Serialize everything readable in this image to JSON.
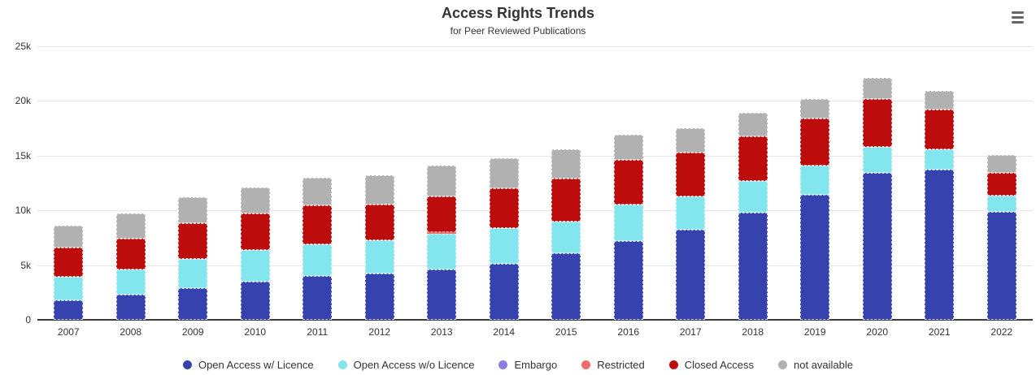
{
  "header": {
    "title": "Access Rights Trends",
    "subtitle": "for Peer Reviewed Publications",
    "menu_icon": "hamburger-menu-icon"
  },
  "chart_data": {
    "type": "bar",
    "stacked": true,
    "title": "Access Rights Trends",
    "subtitle": "for Peer Reviewed Publications",
    "categories": [
      "2007",
      "2008",
      "2009",
      "2010",
      "2011",
      "2012",
      "2013",
      "2014",
      "2015",
      "2016",
      "2017",
      "2018",
      "2019",
      "2020",
      "2021",
      "2022"
    ],
    "series": [
      {
        "name": "Open Access w/ Licence",
        "color": "#3642ad",
        "values": [
          1800,
          2300,
          2900,
          3500,
          4000,
          4200,
          4600,
          5100,
          6100,
          7200,
          8200,
          9800,
          11400,
          13400,
          13700,
          9900
        ]
      },
      {
        "name": "Open Access w/o Licence",
        "color": "#83e6ee",
        "values": [
          2100,
          2300,
          2700,
          2900,
          2900,
          3100,
          3250,
          3300,
          2900,
          3300,
          3100,
          2900,
          2700,
          2400,
          1850,
          1450
        ]
      },
      {
        "name": "Embargo",
        "color": "#8b7ee0",
        "values": [
          0,
          0,
          0,
          0,
          0,
          0,
          0,
          0,
          0,
          0,
          0,
          0,
          0,
          0,
          0,
          0
        ]
      },
      {
        "name": "Restricted",
        "color": "#f06c6c",
        "values": [
          0,
          0,
          0,
          0,
          0,
          0,
          150,
          0,
          0,
          0,
          0,
          0,
          0,
          0,
          0,
          0
        ]
      },
      {
        "name": "Closed Access",
        "color": "#bd0c0c",
        "values": [
          2700,
          2800,
          3200,
          3300,
          3600,
          3200,
          3300,
          3600,
          3900,
          4100,
          4000,
          4100,
          4300,
          4400,
          3700,
          2100
        ]
      },
      {
        "name": "not available",
        "color": "#b1b1b1",
        "values": [
          2000,
          2300,
          2400,
          2400,
          2500,
          2700,
          2800,
          2800,
          2700,
          2300,
          2200,
          2100,
          1800,
          1900,
          1650,
          1650
        ]
      }
    ],
    "ylim": [
      0,
      25000
    ],
    "ytick_values": [
      0,
      5000,
      10000,
      15000,
      20000,
      25000
    ],
    "ytick_labels": [
      "0",
      "5k",
      "10k",
      "15k",
      "20k",
      "25k"
    ],
    "grid": true,
    "legend_position": "bottom"
  }
}
